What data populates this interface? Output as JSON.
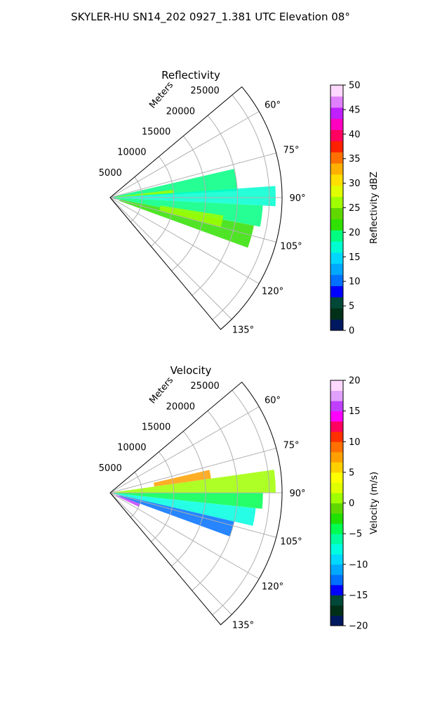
{
  "figure": {
    "suptitle": "SKYLER-HU  SN14_202  0927_1.381 UTC Elevation 08°"
  },
  "chart_data": [
    {
      "type": "polar-ppi",
      "title": "Reflectivity",
      "radial_label": "Meters",
      "r_ticks": [
        5000,
        10000,
        15000,
        20000,
        25000
      ],
      "r_tick_labels": [
        "5000",
        "10000",
        "15000",
        "20000",
        "25000"
      ],
      "rmax": 27000,
      "theta_range_deg": [
        50,
        140
      ],
      "theta_ticks_deg": [
        60,
        75,
        90,
        105,
        120,
        135
      ],
      "theta_tick_labels": [
        "60°",
        "75°",
        "90°",
        "105°",
        "120°",
        "135°"
      ],
      "grid": true,
      "colorbar": {
        "label": "Reflectivity dBZ",
        "min": 0,
        "max": 50,
        "ticks": [
          0,
          5,
          10,
          15,
          20,
          25,
          30,
          35,
          40,
          45,
          50
        ],
        "tick_labels": [
          "0",
          "5",
          "10",
          "15",
          "20",
          "25",
          "30",
          "35",
          "40",
          "45",
          "50"
        ],
        "colors": [
          "#001860",
          "#003018",
          "#004838",
          "#0000ff",
          "#0070ff",
          "#00a8ff",
          "#00d8ff",
          "#00ffd0",
          "#00ff80",
          "#30e000",
          "#60d800",
          "#a0ff00",
          "#e0ff00",
          "#ffe000",
          "#ffb000",
          "#ff7000",
          "#ff2000",
          "#ff0060",
          "#ff00c0",
          "#c020ff",
          "#e080ff",
          "#ffd8ff"
        ]
      },
      "echo_bands": [
        {
          "az_start": 77,
          "az_end": 87,
          "r_start": 500,
          "r_end": 20000,
          "value": 20
        },
        {
          "az_start": 86,
          "az_end": 93,
          "r_start": 500,
          "r_end": 26000,
          "value": 18
        },
        {
          "az_start": 93,
          "az_end": 101,
          "r_start": 500,
          "r_end": 24000,
          "value": 20
        },
        {
          "az_start": 101,
          "az_end": 110,
          "r_start": 1500,
          "r_end": 23000,
          "value": 22
        },
        {
          "az_start": 83,
          "az_end": 86,
          "r_start": 1000,
          "r_end": 10000,
          "value": 27
        },
        {
          "az_start": 99,
          "az_end": 105,
          "r_start": 8000,
          "r_end": 18000,
          "value": 27
        }
      ]
    },
    {
      "type": "polar-ppi",
      "title": "Velocity",
      "radial_label": "Meters",
      "r_ticks": [
        5000,
        10000,
        15000,
        20000,
        25000
      ],
      "r_tick_labels": [
        "5000",
        "10000",
        "15000",
        "20000",
        "25000"
      ],
      "rmax": 27000,
      "theta_range_deg": [
        50,
        140
      ],
      "theta_ticks_deg": [
        60,
        75,
        90,
        105,
        120,
        135
      ],
      "theta_tick_labels": [
        "60°",
        "75°",
        "90°",
        "105°",
        "120°",
        "135°"
      ],
      "grid": true,
      "colorbar": {
        "label": "Velocity (m/s)",
        "min": -20,
        "max": 20,
        "ticks": [
          -20,
          -15,
          -10,
          -5,
          0,
          5,
          10,
          15,
          20
        ],
        "tick_labels": [
          "−20",
          "−15",
          "−10",
          "−5",
          "0",
          "5",
          "10",
          "15",
          "20"
        ],
        "colors": [
          "#001860",
          "#003018",
          "#004838",
          "#0000ff",
          "#0070ff",
          "#00a8ff",
          "#00d8ff",
          "#00ffe0",
          "#00ffa0",
          "#00ff50",
          "#20e000",
          "#60d800",
          "#a0ff00",
          "#e0ff00",
          "#ffff00",
          "#ffd000",
          "#ffa000",
          "#ff7000",
          "#ff3000",
          "#ff0060",
          "#ff00ff",
          "#c040ff",
          "#e0a0ff",
          "#ffd8ff"
        ]
      },
      "echo_bands": [
        {
          "az_start": 77,
          "az_end": 82,
          "r_start": 7000,
          "r_end": 16000,
          "value": 7
        },
        {
          "az_start": 82,
          "az_end": 90,
          "r_start": 500,
          "r_end": 26000,
          "value": 1
        },
        {
          "az_start": 90,
          "az_end": 96,
          "r_start": 500,
          "r_end": 24000,
          "value": -5
        },
        {
          "az_start": 96,
          "az_end": 103,
          "r_start": 500,
          "r_end": 23000,
          "value": -7
        },
        {
          "az_start": 103,
          "az_end": 110,
          "r_start": 1500,
          "r_end": 20000,
          "value": -12
        },
        {
          "az_start": 110,
          "az_end": 116,
          "r_start": 1000,
          "r_end": 5000,
          "value": 15
        }
      ]
    }
  ]
}
